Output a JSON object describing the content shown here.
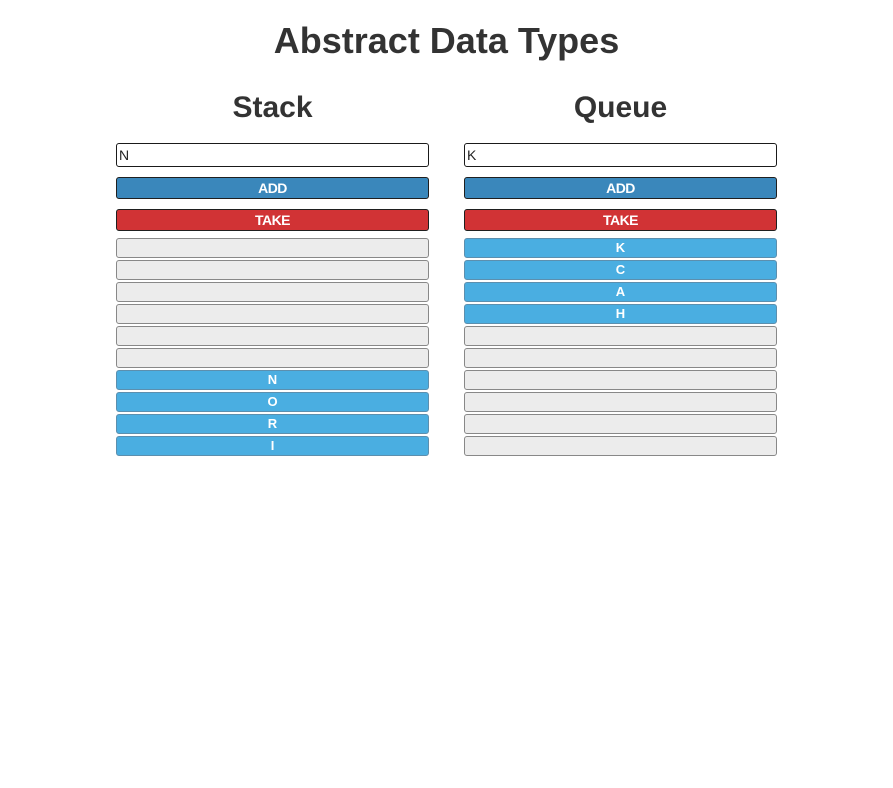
{
  "page": {
    "title": "Abstract Data Types"
  },
  "stack": {
    "title": "Stack",
    "input_value": "N",
    "add_label": "ADD",
    "take_label": "TAKE",
    "slots": [
      "",
      "",
      "",
      "",
      "",
      "",
      "N",
      "O",
      "R",
      "I"
    ]
  },
  "queue": {
    "title": "Queue",
    "input_value": "K",
    "add_label": "ADD",
    "take_label": "TAKE",
    "slots": [
      "K",
      "C",
      "A",
      "H",
      "",
      "",
      "",
      "",
      "",
      ""
    ]
  },
  "colors": {
    "add_button": "#3a87bb",
    "take_button": "#d13335",
    "filled_slot": "#4aaee1",
    "empty_slot": "#ececec"
  }
}
